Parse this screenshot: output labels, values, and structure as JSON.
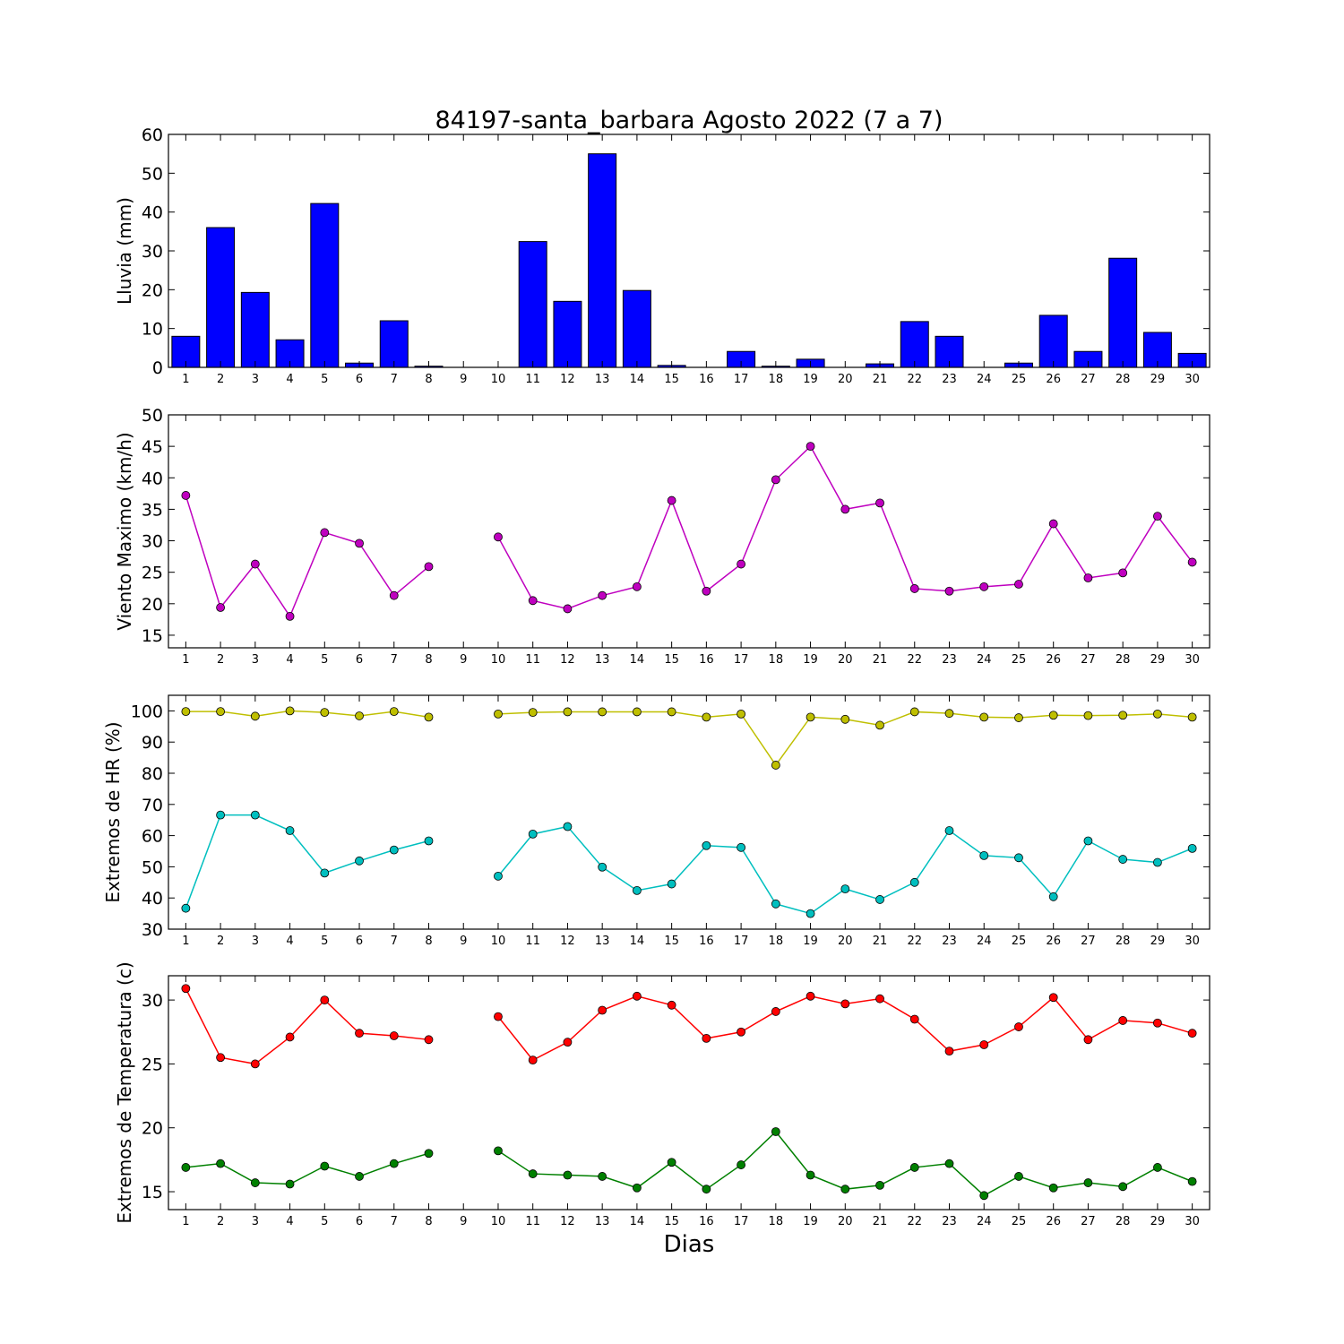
{
  "figure": {
    "title": "84197-santa_barbara Agosto 2022  (7 a 7)",
    "xlabel": "Dias"
  },
  "chart_data": [
    {
      "type": "bar",
      "ylabel": "Lluvia (mm)",
      "ylim": [
        0,
        60
      ],
      "yticks": [
        0,
        10,
        20,
        30,
        40,
        50,
        60
      ],
      "categories": [
        "1",
        "2",
        "3",
        "4",
        "5",
        "6",
        "7",
        "8",
        "9",
        "10",
        "11",
        "12",
        "13",
        "14",
        "15",
        "16",
        "17",
        "18",
        "19",
        "20",
        "21",
        "22",
        "23",
        "24",
        "25",
        "26",
        "27",
        "28",
        "29",
        "30"
      ],
      "values": [
        8,
        36,
        19.3,
        7.1,
        42.2,
        1.1,
        12,
        0.3,
        0,
        0,
        32.4,
        17,
        55,
        19.8,
        0.5,
        0,
        4.1,
        0.3,
        2.1,
        0,
        0.9,
        11.8,
        8,
        0,
        1.1,
        13.4,
        4.1,
        28.1,
        9,
        3.6
      ],
      "color": "#0000ff",
      "grid": false
    },
    {
      "type": "line",
      "ylabel": "Viento Maximo (km/h)",
      "ylim": [
        13,
        50
      ],
      "yticks": [
        15,
        20,
        25,
        30,
        35,
        40,
        45,
        50
      ],
      "x": [
        "1",
        "2",
        "3",
        "4",
        "5",
        "6",
        "7",
        "8",
        "9",
        "10",
        "11",
        "12",
        "13",
        "14",
        "15",
        "16",
        "17",
        "18",
        "19",
        "20",
        "21",
        "22",
        "23",
        "24",
        "25",
        "26",
        "27",
        "28",
        "29",
        "30"
      ],
      "series": [
        {
          "color": "#bf00bf",
          "values": [
            37.2,
            19.4,
            26.3,
            18,
            31.3,
            29.6,
            21.3,
            25.9,
            null,
            30.6,
            20.5,
            19.2,
            21.3,
            22.7,
            36.4,
            22,
            26.3,
            39.7,
            45,
            35,
            36,
            22.4,
            22,
            22.7,
            23.1,
            32.7,
            24.1,
            24.9,
            33.9,
            26.6
          ]
        }
      ],
      "grid": false
    },
    {
      "type": "line",
      "ylabel": "Extremos de HR (%)",
      "ylim": [
        30,
        105
      ],
      "yticks": [
        30,
        40,
        50,
        60,
        70,
        80,
        90,
        100
      ],
      "x": [
        "1",
        "2",
        "3",
        "4",
        "5",
        "6",
        "7",
        "8",
        "9",
        "10",
        "11",
        "12",
        "13",
        "14",
        "15",
        "16",
        "17",
        "18",
        "19",
        "20",
        "21",
        "22",
        "23",
        "24",
        "25",
        "26",
        "27",
        "28",
        "29",
        "30"
      ],
      "series": [
        {
          "color": "#bfbf00",
          "values": [
            99.8,
            99.8,
            98.3,
            100,
            99.5,
            98.4,
            99.8,
            98,
            null,
            99,
            99.5,
            99.7,
            99.7,
            99.7,
            99.7,
            98,
            99,
            82.6,
            98,
            97.3,
            95.4,
            99.7,
            99.2,
            98,
            97.8,
            98.6,
            98.5,
            98.6,
            99,
            98
          ]
        },
        {
          "color": "#00bfbf",
          "values": [
            36.7,
            66.6,
            66.6,
            61.6,
            48,
            51.9,
            55.4,
            58.3,
            null,
            47,
            60.5,
            62.9,
            49.9,
            42.4,
            44.5,
            56.8,
            56.2,
            38.1,
            35,
            42.9,
            39.5,
            45,
            61.6,
            53.6,
            52.9,
            40.4,
            58.3,
            52.4,
            51.4,
            55.9
          ]
        }
      ],
      "grid": false
    },
    {
      "type": "line",
      "ylabel": "Extremos de Temperatura (c)",
      "ylim": [
        13.6,
        31.9
      ],
      "yticks": [
        15,
        20,
        25,
        30
      ],
      "x": [
        "1",
        "2",
        "3",
        "4",
        "5",
        "6",
        "7",
        "8",
        "9",
        "10",
        "11",
        "12",
        "13",
        "14",
        "15",
        "16",
        "17",
        "18",
        "19",
        "20",
        "21",
        "22",
        "23",
        "24",
        "25",
        "26",
        "27",
        "28",
        "29",
        "30"
      ],
      "series": [
        {
          "color": "#ff0000",
          "values": [
            30.9,
            25.5,
            25,
            27.1,
            30,
            27.4,
            27.2,
            26.9,
            null,
            28.7,
            25.3,
            26.7,
            29.2,
            30.3,
            29.6,
            27,
            27.5,
            29.1,
            30.3,
            29.7,
            30.1,
            28.5,
            26,
            26.5,
            27.9,
            30.2,
            26.9,
            28.4,
            28.2,
            27.4
          ]
        },
        {
          "color": "#008000",
          "values": [
            16.9,
            17.2,
            15.7,
            15.6,
            17,
            16.2,
            17.2,
            18,
            null,
            18.2,
            16.4,
            16.3,
            16.2,
            15.3,
            17.3,
            15.2,
            17.1,
            19.7,
            16.3,
            15.2,
            15.5,
            16.9,
            17.2,
            14.7,
            16.2,
            15.3,
            15.7,
            15.4,
            16.9,
            15.8
          ]
        }
      ],
      "grid": false
    }
  ]
}
